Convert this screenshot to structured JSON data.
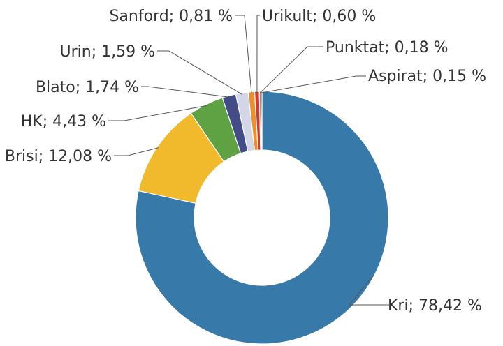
{
  "chart_data": {
    "type": "pie",
    "donut": true,
    "decimal_separator": ",",
    "unit": "%",
    "slices": [
      {
        "name": "Kri",
        "value": 78.42,
        "label": "Kri; 78,42 %",
        "color": "#3779A8"
      },
      {
        "name": "Brisi",
        "value": 12.08,
        "label": "Brisi; 12,08 %",
        "color": "#F0BA2C"
      },
      {
        "name": "HK",
        "value": 4.43,
        "label": "HK; 4,43 %",
        "color": "#5EA244"
      },
      {
        "name": "Blato",
        "value": 1.74,
        "label": "Blato; 1,74 %",
        "color": "#434C86"
      },
      {
        "name": "Urin",
        "value": 1.59,
        "label": "Urin; 1,59 %",
        "color": "#D2D6E6"
      },
      {
        "name": "Sanford",
        "value": 0.81,
        "label": "Sanford; 0,81 %",
        "color": "#EC8F2B"
      },
      {
        "name": "Urikult",
        "value": 0.6,
        "label": "Urikult; 0,60 %",
        "color": "#D63A27"
      },
      {
        "name": "Punktat",
        "value": 0.18,
        "label": "Punktat; 0,18 %",
        "color": "#8E1F1B"
      },
      {
        "name": "Aspirat",
        "value": 0.15,
        "label": "Aspirat; 0,15 %",
        "color": "#2F5E22"
      }
    ]
  }
}
